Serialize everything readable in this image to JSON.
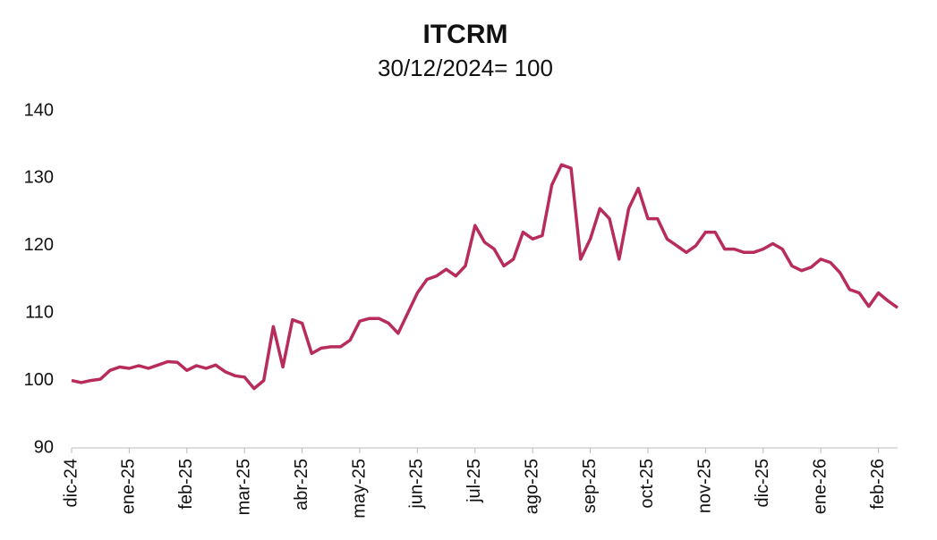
{
  "chart_data": {
    "type": "line",
    "title": "ITCRM",
    "subtitle": "30/12/2024= 100",
    "categories": [
      "dic-24",
      null,
      null,
      null,
      null,
      null,
      "ene-25",
      null,
      null,
      null,
      null,
      null,
      "feb-25",
      null,
      null,
      null,
      null,
      null,
      "mar-25",
      null,
      null,
      null,
      null,
      null,
      "abr-25",
      null,
      null,
      null,
      null,
      null,
      "may-25",
      null,
      null,
      null,
      null,
      null,
      "jun-25",
      null,
      null,
      null,
      null,
      null,
      "jul-25",
      null,
      null,
      null,
      null,
      null,
      "ago-25",
      null,
      null,
      null,
      null,
      null,
      "sep-25",
      null,
      null,
      null,
      null,
      null,
      "oct-25",
      null,
      null,
      null,
      null,
      null,
      "nov-25",
      null,
      null,
      null,
      null,
      null,
      "dic-25",
      null,
      null,
      null,
      null,
      null,
      "ene-26",
      null,
      null,
      null,
      null,
      null,
      "feb-26",
      null,
      null
    ],
    "values": [
      100,
      99.7,
      100,
      100.2,
      101.5,
      102,
      101.8,
      102.2,
      101.8,
      102.3,
      102.8,
      102.7,
      101.5,
      102.2,
      101.8,
      102.3,
      101.3,
      100.7,
      100.5,
      98.8,
      100,
      108,
      102,
      109,
      108.5,
      104,
      104.8,
      105,
      105,
      106,
      108.8,
      109.2,
      109.2,
      108.5,
      107,
      110,
      113,
      115,
      115.5,
      116.5,
      115.5,
      117,
      123,
      120.5,
      119.5,
      117,
      118,
      122,
      121,
      121.5,
      129,
      132,
      131.5,
      118,
      121,
      125.5,
      124,
      118,
      125.5,
      128.5,
      124,
      124,
      121,
      120,
      119,
      120,
      122,
      122,
      119.5,
      119.5,
      119,
      119,
      119.5,
      120.3,
      119.5,
      117,
      116.3,
      116.8,
      118,
      117.5,
      116,
      113.5,
      113,
      111,
      113,
      111.8,
      110.8
    ],
    "color": "#b72c5c",
    "ylim": [
      90,
      140
    ],
    "yticks": [
      90,
      100,
      110,
      120,
      130,
      140
    ],
    "grid": false
  }
}
